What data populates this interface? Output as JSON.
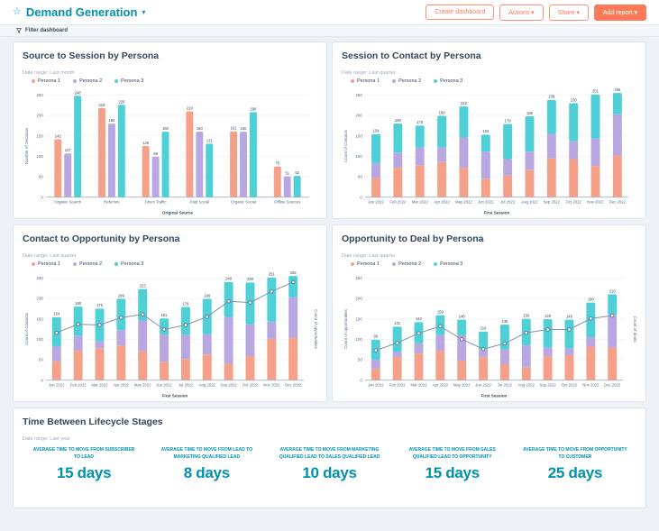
{
  "header": {
    "title": "Demand Generation",
    "caret": "▾",
    "star_icon": "star",
    "buttons": [
      {
        "label": "Create dashboard",
        "primary": false
      },
      {
        "label": "Actions ▾",
        "primary": false
      },
      {
        "label": "Share ▾",
        "primary": false
      },
      {
        "label": "Add report ▾",
        "primary": true
      }
    ]
  },
  "filter_bar": {
    "label": "Filter dashboard"
  },
  "colors": {
    "accent_orange": "#ff7a59",
    "teal_text": "#0091ae",
    "persona1": "#f5a189",
    "persona2": "#b9a7e2",
    "persona3": "#4fd0d6",
    "line": "#8093a9",
    "axis_text": "#516f90",
    "dark_text": "#33475b"
  },
  "chart_data": [
    {
      "type": "bar",
      "title": "Source to Session by Persona",
      "date_range": "Date range: Last month",
      "categories": [
        "Organic Search",
        "Referrals",
        "Direct Traffic",
        "Paid Social",
        "Organic Social",
        "Offline Sources"
      ],
      "series": [
        {
          "name": "Persona 1",
          "color": "#f5a189",
          "values": [
            142,
            218,
            125,
            210,
            161,
            75
          ]
        },
        {
          "name": "Persona 2",
          "color": "#b9a7e2",
          "values": [
            107,
            180,
            99,
            160,
            160,
            51
          ]
        },
        {
          "name": "Persona 3",
          "color": "#4fd0d6",
          "values": [
            248,
            226,
            160,
            131,
            208,
            52
          ]
        }
      ],
      "xlabel": "Original Source",
      "ylabel": "Number of Sessions",
      "ylim": [
        0,
        250
      ],
      "yticks": [
        0,
        50,
        100,
        150,
        200,
        250
      ],
      "grid": true,
      "legend_position": "top"
    },
    {
      "type": "stacked-bar",
      "title": "Session to Contact by Persona",
      "date_range": "Date range: Last quarter",
      "categories": [
        "Jan 2022",
        "Feb 2022",
        "Mar 2022",
        "Apr 2022",
        "May 2022",
        "Jun 2022",
        "Jul 2022",
        "Aug 2022",
        "Sep 2022",
        "Oct 2022",
        "Nov 2022",
        "Dec 2022"
      ],
      "series": [
        {
          "name": "Persona 1",
          "color": "#f5a189",
          "values": [
            47,
            72,
            78,
            86,
            72,
            45,
            53,
            67,
            95,
            93,
            76,
            102
          ]
        },
        {
          "name": "Persona 2",
          "color": "#b9a7e2",
          "values": [
            36,
            37,
            43,
            35,
            74,
            66,
            40,
            44,
            60,
            44,
            67,
            101
          ]
        },
        {
          "name": "Persona 3",
          "color": "#4fd0d6",
          "values": [
            71,
            71,
            54,
            78,
            76,
            42,
            86,
            87,
            83,
            93,
            108,
            52
          ]
        }
      ],
      "totals": [
        154,
        180,
        175,
        199,
        222,
        153,
        179,
        198,
        238,
        230,
        251,
        255
      ],
      "xlabel": "First Session",
      "ylabel": "Count of Contacts",
      "ylim": [
        0,
        250
      ],
      "yticks": [
        0,
        50,
        100,
        150,
        200,
        250
      ],
      "grid": true,
      "legend_position": "top"
    },
    {
      "type": "stacked-bar",
      "title": "Contact to Opportunity by Persona",
      "date_range": "Date range: Last quarter",
      "categories": [
        "Jan 2022",
        "Feb 2022",
        "Mar 2022",
        "Apr 2022",
        "May 2022",
        "Jun 2022",
        "Jul 2022",
        "Aug 2022",
        "Sep 2022",
        "Oct 2022",
        "Nov 2022",
        "Dec 2022"
      ],
      "series": [
        {
          "name": "Persona 1",
          "color": "#f5a189",
          "values": [
            46,
            72,
            78,
            85,
            72,
            45,
            52,
            63,
            40,
            59,
            101,
            103
          ]
        },
        {
          "name": "Persona 2",
          "color": "#b9a7e2",
          "values": [
            36,
            36,
            17,
            37,
            74,
            66,
            59,
            49,
            115,
            78,
            42,
            100
          ]
        },
        {
          "name": "Persona 3",
          "color": "#4fd0d6",
          "values": [
            72,
            72,
            80,
            77,
            77,
            40,
            68,
            87,
            85,
            102,
            108,
            52
          ]
        }
      ],
      "totals": [
        154,
        180,
        175,
        199,
        223,
        151,
        179,
        199,
        240,
        239,
        251,
        255
      ],
      "line": {
        "name": "Count of opportunities",
        "color": "#8093a9",
        "values": [
          116,
          137,
          135,
          153,
          161,
          124,
          135,
          155,
          193,
          190,
          217,
          240
        ]
      },
      "xlabel": "First Session",
      "ylabel": "Count of Contacts",
      "ylabel_right": "Count of opportunities",
      "ylim": [
        0,
        250
      ],
      "yticks": [
        0,
        50,
        100,
        150,
        200,
        250
      ],
      "grid": true,
      "legend_position": "top"
    },
    {
      "type": "stacked-bar",
      "title": "Opportunity to Deal by Persona",
      "date_range": "Date range: Last quarter",
      "categories": [
        "Jan 2022",
        "Feb 2022",
        "Mar 2022",
        "Apr 2022",
        "May 2022",
        "Jun 2022",
        "Jul 2022",
        "Aug 2022",
        "Sep 2022",
        "Oct 2022",
        "Nov 2022",
        "Dec 2022"
      ],
      "series": [
        {
          "name": "Persona 1",
          "color": "#f5a189",
          "values": [
            28,
            57,
            65,
            72,
            48,
            56,
            39,
            31,
            58,
            61,
            82,
            80
          ]
        },
        {
          "name": "Persona 2",
          "color": "#b9a7e2",
          "values": [
            22,
            13,
            25,
            38,
            62,
            19,
            36,
            54,
            22,
            17,
            23,
            80
          ]
        },
        {
          "name": "Persona 3",
          "color": "#4fd0d6",
          "values": [
            49,
            61,
            52,
            49,
            38,
            44,
            61,
            65,
            69,
            70,
            85,
            50
          ]
        }
      ],
      "totals": [
        99,
        131,
        142,
        159,
        148,
        119,
        136,
        150,
        149,
        148,
        190,
        210
      ],
      "line": {
        "name": "Count of deals",
        "color": "#8093a9",
        "values": [
          73,
          91,
          115,
          132,
          100,
          76,
          90,
          116,
          124,
          124,
          151,
          158
        ]
      },
      "xlabel": "First Session",
      "ylabel": "Count of opportunities",
      "ylabel_right": "Count of deals",
      "ylim": [
        0,
        250
      ],
      "yticks": [
        0,
        50,
        100,
        150,
        200,
        250
      ],
      "grid": true,
      "legend_position": "top"
    }
  ],
  "lifecycle": {
    "title": "Time Between Lifecycle Stages",
    "date_range": "Date range: Last year",
    "metrics": [
      {
        "label": "Average time to move from Subscriber to Lead",
        "value": "15 days"
      },
      {
        "label": "Average time to move from Lead to Marketing Qualified Lead",
        "value": "8 days"
      },
      {
        "label": "Average time to move from Marketing Qualified Lead to Sales Qualified Lead",
        "value": "10 days"
      },
      {
        "label": "Average time to move from Sales Qualified Lead to Opportunity",
        "value": "15 days"
      },
      {
        "label": "Average time to move from Opportunity to Customer",
        "value": "25 days"
      }
    ]
  }
}
